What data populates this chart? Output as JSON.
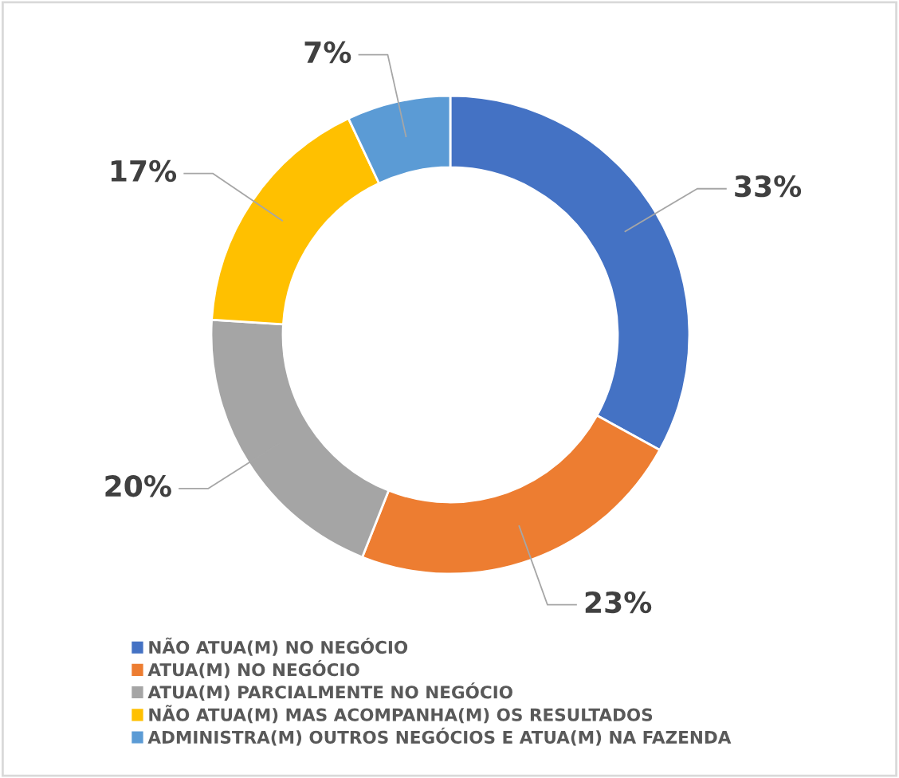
{
  "chart_data": {
    "type": "donut",
    "categories": [
      "NÃO ATUA(M) NO NEGÓCIO",
      "ATUA(M) NO NEGÓCIO",
      "ATUA(M) PARCIALMENTE NO NEGÓCIO",
      "NÃO ATUA(M) MAS ACOMPANHA(M) OS RESULTADOS",
      "ADMINISTRA(M) OUTROS NEGÓCIOS E ATUA(M) NA FAZENDA"
    ],
    "values": [
      33,
      23,
      20,
      17,
      7
    ],
    "colors": [
      "#4472c4",
      "#ed7d31",
      "#a5a5a5",
      "#ffc000",
      "#5b9bd5"
    ],
    "value_labels": [
      "33%",
      "23%",
      "20%",
      "17%",
      "7%"
    ],
    "legend": "bottom"
  }
}
